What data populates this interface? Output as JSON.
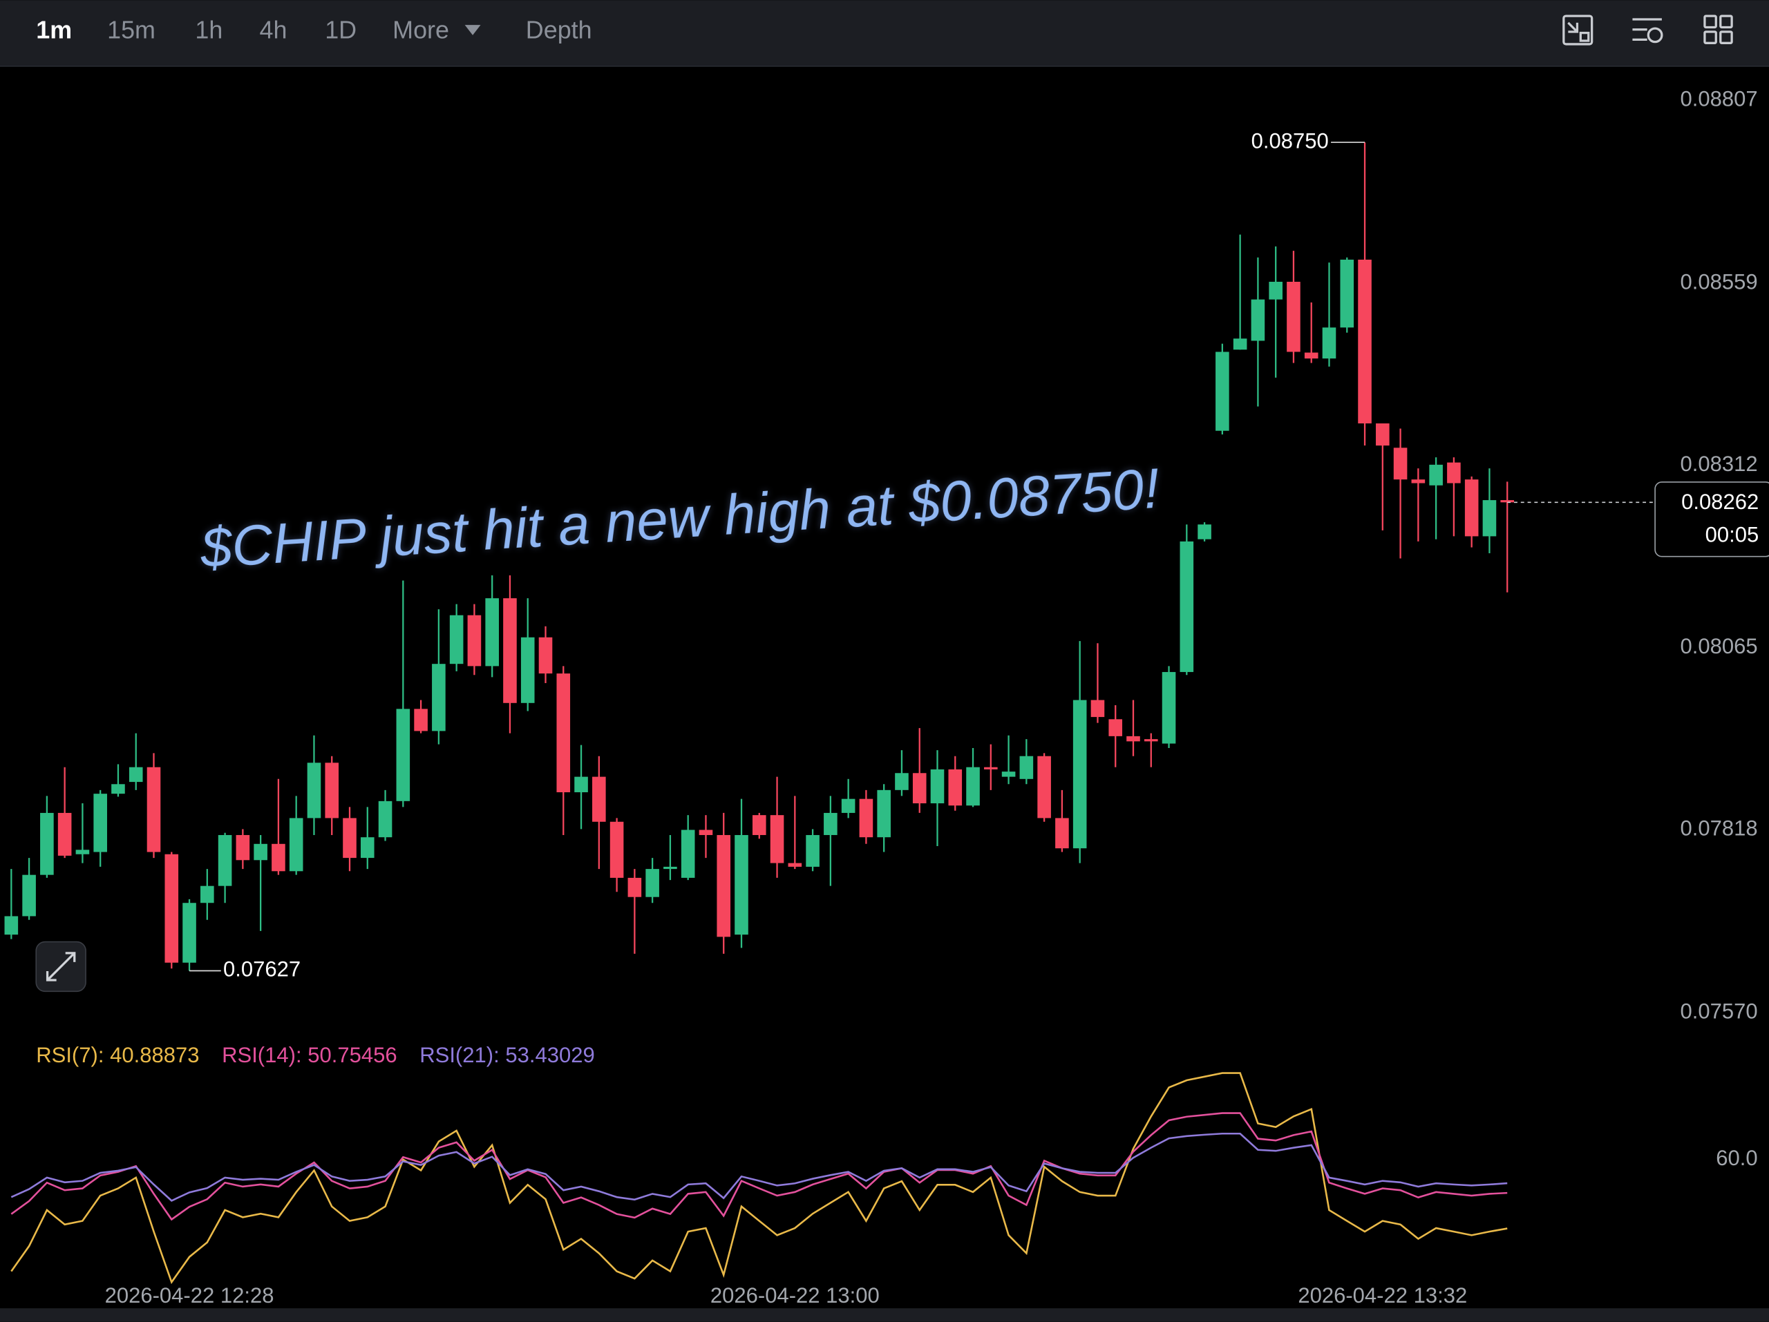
{
  "toolbar": {
    "intervals": [
      "1m",
      "15m",
      "1h",
      "4h",
      "1D"
    ],
    "more": "More",
    "depth": "Depth"
  },
  "headline": "$CHIP just hit a new high at $0.08750!",
  "chart_data": [
    {
      "type": "candlestick",
      "categories": [
        null,
        null,
        null,
        null,
        null,
        null,
        null,
        null,
        null,
        null,
        "2026-04-22 12:28",
        null,
        null,
        null,
        null,
        null,
        null,
        null,
        null,
        null,
        null,
        null,
        null,
        null,
        null,
        null,
        null,
        null,
        null,
        null,
        null,
        null,
        null,
        null,
        null,
        null,
        null,
        null,
        null,
        null,
        null,
        null,
        null,
        null,
        "2026-04-22 13:00",
        null,
        null,
        null,
        null,
        null,
        null,
        null,
        null,
        null,
        null,
        null,
        null,
        null,
        null,
        null,
        null,
        null,
        null,
        null,
        null,
        null,
        null,
        null,
        null,
        null,
        null,
        null,
        null,
        null,
        null,
        null,
        null,
        "2026-04-22 13:32",
        null,
        null,
        null,
        null,
        null,
        null,
        null
      ],
      "open": [
        0.07676,
        0.07701,
        0.07757,
        0.07841,
        0.07785,
        0.07788,
        0.07867,
        0.07883,
        0.07903,
        0.07785,
        0.07638,
        0.07719,
        0.07742,
        0.07811,
        0.07777,
        0.07799,
        0.07762,
        0.07834,
        0.07909,
        0.07834,
        0.0778,
        0.07808,
        0.07857,
        0.07982,
        0.07952,
        0.08043,
        0.08109,
        0.0804,
        0.08132,
        0.0799,
        0.08079,
        0.0803,
        0.07869,
        0.0789,
        0.07829,
        0.07753,
        0.07727,
        0.07765,
        0.07753,
        0.07818,
        0.07811,
        0.07676,
        0.07838,
        0.07838,
        0.07773,
        0.07768,
        0.07811,
        0.07841,
        0.0786,
        0.07808,
        0.07872,
        0.07895,
        0.07854,
        0.079,
        0.07851,
        0.07903,
        0.0789,
        0.07887,
        0.07918,
        0.07834,
        0.07793,
        0.07994,
        0.07968,
        0.07945,
        0.07941,
        0.07935,
        0.08032,
        0.08212,
        0.08359,
        0.08469,
        0.08481,
        0.08537,
        0.08561,
        0.08465,
        0.08457,
        0.08499,
        0.08591,
        0.08369,
        0.08336,
        0.08293,
        0.08285,
        0.08316,
        0.08293,
        0.08216,
        0.08265
      ],
      "high": [
        0.07765,
        0.0778,
        0.07864,
        0.07903,
        0.07854,
        0.07872,
        0.07907,
        0.07949,
        0.07922,
        0.07788,
        0.07724,
        0.07765,
        0.07814,
        0.07819,
        0.07811,
        0.07887,
        0.07864,
        0.07946,
        0.07918,
        0.07849,
        0.07849,
        0.07872,
        0.08156,
        0.07994,
        0.08117,
        0.08124,
        0.08124,
        0.08163,
        0.08163,
        0.08132,
        0.08094,
        0.0804,
        0.07933,
        0.07918,
        0.07834,
        0.07765,
        0.0778,
        0.07811,
        0.07838,
        0.07838,
        0.07841,
        0.0786,
        0.07841,
        0.0789,
        0.07864,
        0.07819,
        0.07864,
        0.07887,
        0.07872,
        0.0788,
        0.07926,
        0.07956,
        0.07926,
        0.07918,
        0.07929,
        0.07934,
        0.07946,
        0.07941,
        0.07922,
        0.07872,
        0.08074,
        0.08071,
        0.07987,
        0.07994,
        0.07949,
        0.0804,
        0.08232,
        0.08235,
        0.08477,
        0.08625,
        0.08594,
        0.08609,
        0.08603,
        0.08533,
        0.08587,
        0.08594,
        0.0875,
        0.08369,
        0.08362,
        0.08308,
        0.08323,
        0.08323,
        0.08297,
        0.08308,
        0.0829
      ],
      "low": [
        0.0767,
        0.07696,
        0.07753,
        0.0778,
        0.07773,
        0.07768,
        0.07863,
        0.07872,
        0.0778,
        0.0763,
        0.07627,
        0.07696,
        0.07719,
        0.07765,
        0.07681,
        0.07757,
        0.07757,
        0.07811,
        0.07811,
        0.07762,
        0.07765,
        0.07803,
        0.07849,
        0.07949,
        0.07934,
        0.08033,
        0.08028,
        0.08025,
        0.07949,
        0.07979,
        0.08017,
        0.07811,
        0.07819,
        0.07765,
        0.07734,
        0.0765,
        0.07719,
        0.0775,
        0.0775,
        0.0778,
        0.0765,
        0.07658,
        0.07806,
        0.07753,
        0.07765,
        0.07762,
        0.07742,
        0.07834,
        0.07799,
        0.07788,
        0.07864,
        0.07841,
        0.07796,
        0.07844,
        0.07849,
        0.07872,
        0.0788,
        0.0788,
        0.07829,
        0.07788,
        0.07773,
        0.07963,
        0.07903,
        0.07918,
        0.07903,
        0.07929,
        0.08028,
        0.08209,
        0.08354,
        0.08469,
        0.08392,
        0.08431,
        0.08451,
        0.08451,
        0.08446,
        0.08492,
        0.08339,
        0.08224,
        0.08186,
        0.08209,
        0.08212,
        0.08216,
        0.08201,
        0.08193,
        0.0814
      ],
      "close": [
        0.07701,
        0.07757,
        0.07841,
        0.07783,
        0.07791,
        0.07867,
        0.0788,
        0.07903,
        0.07788,
        0.07638,
        0.07719,
        0.07742,
        0.07811,
        0.07777,
        0.07799,
        0.07762,
        0.07834,
        0.07909,
        0.07834,
        0.0778,
        0.07808,
        0.07857,
        0.07982,
        0.07952,
        0.08043,
        0.08109,
        0.0804,
        0.08132,
        0.0799,
        0.08079,
        0.0803,
        0.07869,
        0.0789,
        0.07829,
        0.07753,
        0.07727,
        0.07765,
        0.07768,
        0.07818,
        0.07811,
        0.07673,
        0.07811,
        0.07811,
        0.07773,
        0.07768,
        0.07811,
        0.07841,
        0.0786,
        0.07808,
        0.07872,
        0.07895,
        0.07854,
        0.079,
        0.07851,
        0.07903,
        0.079,
        0.07897,
        0.07918,
        0.07834,
        0.07793,
        0.07994,
        0.07971,
        0.07945,
        0.07938,
        0.07938,
        0.08032,
        0.08209,
        0.08232,
        0.08466,
        0.08484,
        0.08537,
        0.08561,
        0.08466,
        0.08457,
        0.08499,
        0.08591,
        0.08369,
        0.08339,
        0.08293,
        0.08288,
        0.08313,
        0.08288,
        0.08216,
        0.08265,
        0.08262
      ],
      "up_color": "#2ebd85",
      "down_color": "#f6465d",
      "ylim": [
        0.07544,
        0.08851
      ],
      "yticks": [
        0.08807,
        0.08559,
        0.08312,
        0.08065,
        0.07818,
        {
          "value": 0.0757,
          "label": "0.07570"
        }
      ],
      "grid": false,
      "annotations": [
        {
          "value": 0.0875,
          "label": "0.08750"
        },
        {
          "value": 0.07627,
          "label": "0.07627"
        }
      ],
      "last_price": 0.08262,
      "countdown": "00:05"
    },
    {
      "type": "line",
      "series": [
        {
          "name": "RSI(7): 40.88873",
          "color": "#e9b949",
          "values": [
            29,
            36,
            46,
            42,
            43,
            50,
            52,
            55,
            40,
            26,
            33,
            37,
            46,
            44,
            45,
            44,
            51,
            57,
            47,
            43,
            44,
            47,
            60,
            57,
            65,
            68,
            58,
            64,
            48,
            53,
            49,
            35,
            38,
            34,
            29,
            27,
            32,
            29,
            40,
            41,
            28,
            47,
            43,
            39,
            41,
            45,
            48,
            51,
            43,
            52,
            54,
            46,
            53,
            53,
            51,
            55,
            39,
            34,
            58,
            54,
            51,
            50,
            50,
            63,
            72,
            80,
            82,
            83,
            84,
            84,
            70,
            69,
            72,
            74,
            46,
            43,
            40,
            43,
            42,
            38,
            41,
            40,
            39,
            40,
            40.88873
          ]
        },
        {
          "name": "RSI(14): 50.75456",
          "color": "#e3519c",
          "values": [
            44.9,
            48.5,
            53.6,
            51.5,
            52,
            55.6,
            56.6,
            58.2,
            50.5,
            43.4,
            46.9,
            49,
            53.6,
            52.5,
            53.1,
            52.5,
            56.1,
            59.2,
            54.1,
            52,
            52.5,
            54.1,
            60.7,
            59.2,
            63.3,
            64.8,
            59.7,
            62.7,
            54.6,
            57.1,
            55.1,
            48,
            49.5,
            47.4,
            44.9,
            43.9,
            46.4,
            44.9,
            50.5,
            51,
            44.4,
            54.1,
            52,
            50,
            51,
            53.1,
            54.6,
            56.1,
            52,
            56.6,
            57.6,
            53.6,
            57.1,
            57.1,
            56.1,
            58.2,
            50,
            47.4,
            59.7,
            57.6,
            56.1,
            55.6,
            55.6,
            62.2,
            66.8,
            70.9,
            71.9,
            72.4,
            72.9,
            72.9,
            65.8,
            65.3,
            66.8,
            67.8,
            53.6,
            52,
            50.5,
            52,
            51.5,
            49.5,
            51,
            50.5,
            50,
            50.5,
            50.75456
          ]
        },
        {
          "name": "RSI(21): 53.43029",
          "color": "#8f7bdb",
          "values": [
            49.6,
            51.8,
            55,
            53.7,
            54.1,
            56.3,
            56.9,
            57.9,
            53.1,
            48.6,
            50.9,
            52.1,
            55,
            54.4,
            54.7,
            54.4,
            56.6,
            58.5,
            55.3,
            54.1,
            54.4,
            55.3,
            59.5,
            58.5,
            61.1,
            62.1,
            58.9,
            60.8,
            55.7,
            57.3,
            56,
            51.5,
            52.5,
            51.2,
            49.6,
            48.9,
            50.5,
            49.6,
            53.1,
            53.4,
            49.3,
            55.3,
            54.1,
            52.8,
            53.4,
            54.7,
            55.7,
            56.6,
            54.1,
            56.9,
            57.6,
            55,
            57.3,
            57.3,
            56.6,
            57.9,
            52.8,
            51.2,
            58.9,
            57.6,
            56.6,
            56.3,
            56.3,
            60.5,
            63.3,
            65.9,
            66.5,
            66.9,
            67.2,
            67.2,
            62.7,
            62.4,
            63.3,
            64,
            55,
            54.1,
            53.1,
            54.1,
            53.7,
            52.5,
            53.4,
            53.1,
            52.8,
            53.1,
            53.43029
          ]
        }
      ],
      "ylim": [
        25,
        86
      ],
      "yticks": [
        {
          "value": 60,
          "label": "60.0"
        }
      ]
    }
  ]
}
